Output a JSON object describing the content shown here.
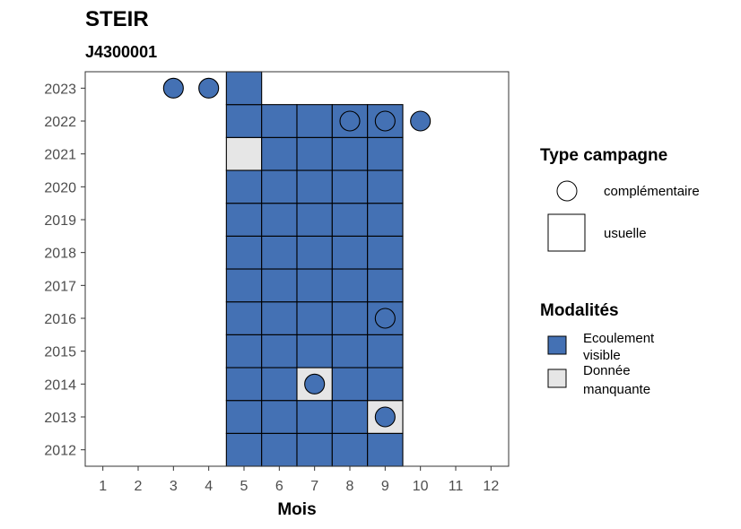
{
  "chart_data": {
    "type": "heatmap",
    "title": "STEIR",
    "subtitle": "J4300001",
    "xlabel": "Mois",
    "ylabel": "",
    "x_ticks": [
      1,
      2,
      3,
      4,
      5,
      6,
      7,
      8,
      9,
      10,
      11,
      12
    ],
    "y_ticks": [
      2012,
      2013,
      2014,
      2015,
      2016,
      2017,
      2018,
      2019,
      2020,
      2021,
      2022,
      2023
    ],
    "xlim": [
      0.5,
      12.5
    ],
    "ylim": [
      2011.5,
      2023.5
    ],
    "colors": {
      "Ecoulement visible": "#4471b4",
      "Donnée manquante": "#e6e6e6"
    },
    "usuelle": [
      {
        "year": 2012,
        "month": 5,
        "value": "Ecoulement visible"
      },
      {
        "year": 2012,
        "month": 6,
        "value": "Ecoulement visible"
      },
      {
        "year": 2012,
        "month": 7,
        "value": "Ecoulement visible"
      },
      {
        "year": 2012,
        "month": 8,
        "value": "Ecoulement visible"
      },
      {
        "year": 2012,
        "month": 9,
        "value": "Ecoulement visible"
      },
      {
        "year": 2013,
        "month": 5,
        "value": "Ecoulement visible"
      },
      {
        "year": 2013,
        "month": 6,
        "value": "Ecoulement visible"
      },
      {
        "year": 2013,
        "month": 7,
        "value": "Ecoulement visible"
      },
      {
        "year": 2013,
        "month": 8,
        "value": "Ecoulement visible"
      },
      {
        "year": 2013,
        "month": 9,
        "value": "Donnée manquante"
      },
      {
        "year": 2014,
        "month": 5,
        "value": "Ecoulement visible"
      },
      {
        "year": 2014,
        "month": 6,
        "value": "Ecoulement visible"
      },
      {
        "year": 2014,
        "month": 7,
        "value": "Donnée manquante"
      },
      {
        "year": 2014,
        "month": 8,
        "value": "Ecoulement visible"
      },
      {
        "year": 2014,
        "month": 9,
        "value": "Ecoulement visible"
      },
      {
        "year": 2015,
        "month": 5,
        "value": "Ecoulement visible"
      },
      {
        "year": 2015,
        "month": 6,
        "value": "Ecoulement visible"
      },
      {
        "year": 2015,
        "month": 7,
        "value": "Ecoulement visible"
      },
      {
        "year": 2015,
        "month": 8,
        "value": "Ecoulement visible"
      },
      {
        "year": 2015,
        "month": 9,
        "value": "Ecoulement visible"
      },
      {
        "year": 2016,
        "month": 5,
        "value": "Ecoulement visible"
      },
      {
        "year": 2016,
        "month": 6,
        "value": "Ecoulement visible"
      },
      {
        "year": 2016,
        "month": 7,
        "value": "Ecoulement visible"
      },
      {
        "year": 2016,
        "month": 8,
        "value": "Ecoulement visible"
      },
      {
        "year": 2016,
        "month": 9,
        "value": "Ecoulement visible"
      },
      {
        "year": 2017,
        "month": 5,
        "value": "Ecoulement visible"
      },
      {
        "year": 2017,
        "month": 6,
        "value": "Ecoulement visible"
      },
      {
        "year": 2017,
        "month": 7,
        "value": "Ecoulement visible"
      },
      {
        "year": 2017,
        "month": 8,
        "value": "Ecoulement visible"
      },
      {
        "year": 2017,
        "month": 9,
        "value": "Ecoulement visible"
      },
      {
        "year": 2018,
        "month": 5,
        "value": "Ecoulement visible"
      },
      {
        "year": 2018,
        "month": 6,
        "value": "Ecoulement visible"
      },
      {
        "year": 2018,
        "month": 7,
        "value": "Ecoulement visible"
      },
      {
        "year": 2018,
        "month": 8,
        "value": "Ecoulement visible"
      },
      {
        "year": 2018,
        "month": 9,
        "value": "Ecoulement visible"
      },
      {
        "year": 2019,
        "month": 5,
        "value": "Ecoulement visible"
      },
      {
        "year": 2019,
        "month": 6,
        "value": "Ecoulement visible"
      },
      {
        "year": 2019,
        "month": 7,
        "value": "Ecoulement visible"
      },
      {
        "year": 2019,
        "month": 8,
        "value": "Ecoulement visible"
      },
      {
        "year": 2019,
        "month": 9,
        "value": "Ecoulement visible"
      },
      {
        "year": 2020,
        "month": 5,
        "value": "Ecoulement visible"
      },
      {
        "year": 2020,
        "month": 6,
        "value": "Ecoulement visible"
      },
      {
        "year": 2020,
        "month": 7,
        "value": "Ecoulement visible"
      },
      {
        "year": 2020,
        "month": 8,
        "value": "Ecoulement visible"
      },
      {
        "year": 2020,
        "month": 9,
        "value": "Ecoulement visible"
      },
      {
        "year": 2021,
        "month": 5,
        "value": "Donnée manquante"
      },
      {
        "year": 2021,
        "month": 6,
        "value": "Ecoulement visible"
      },
      {
        "year": 2021,
        "month": 7,
        "value": "Ecoulement visible"
      },
      {
        "year": 2021,
        "month": 8,
        "value": "Ecoulement visible"
      },
      {
        "year": 2021,
        "month": 9,
        "value": "Ecoulement visible"
      },
      {
        "year": 2022,
        "month": 5,
        "value": "Ecoulement visible"
      },
      {
        "year": 2022,
        "month": 6,
        "value": "Ecoulement visible"
      },
      {
        "year": 2022,
        "month": 7,
        "value": "Ecoulement visible"
      },
      {
        "year": 2022,
        "month": 8,
        "value": "Ecoulement visible"
      },
      {
        "year": 2022,
        "month": 9,
        "value": "Ecoulement visible"
      },
      {
        "year": 2023,
        "month": 5,
        "value": "Ecoulement visible"
      }
    ],
    "complementaire": [
      {
        "year": 2023,
        "month": 3,
        "value": "Ecoulement visible"
      },
      {
        "year": 2023,
        "month": 4,
        "value": "Ecoulement visible"
      },
      {
        "year": 2022,
        "month": 8,
        "value": "Ecoulement visible"
      },
      {
        "year": 2022,
        "month": 9,
        "value": "Ecoulement visible"
      },
      {
        "year": 2022,
        "month": 10,
        "value": "Ecoulement visible"
      },
      {
        "year": 2016,
        "month": 9,
        "value": "Ecoulement visible"
      },
      {
        "year": 2014,
        "month": 7,
        "value": "Ecoulement visible"
      },
      {
        "year": 2013,
        "month": 9,
        "value": "Ecoulement visible"
      }
    ],
    "legend": {
      "placement": "right",
      "type_title": "Type campagne",
      "type_items": [
        {
          "shape": "circle",
          "label": "complémentaire"
        },
        {
          "shape": "square",
          "label": "usuelle"
        }
      ],
      "modalite_title": "Modalités",
      "modalite_items": [
        {
          "key": "Ecoulement visible",
          "label_lines": [
            "Ecoulement",
            "visible"
          ]
        },
        {
          "key": "Donnée manquante",
          "label_lines": [
            "Donnée",
            "manquante"
          ]
        }
      ]
    }
  }
}
